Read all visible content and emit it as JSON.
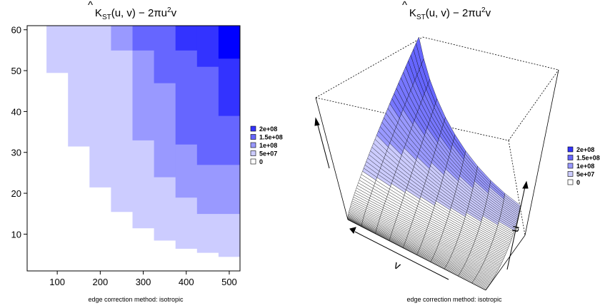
{
  "page": {
    "caption_left": "edge correction method: isotropic",
    "caption_right": "edge correction method: isotropic"
  },
  "chart_data": [
    {
      "type": "heatmap",
      "title": "K̂ST(u, v) − 2πu²v",
      "title_parts": {
        "hat": "^",
        "main": "K",
        "sub": "ST",
        "args": "(u, v) − 2πu",
        "sup": "2",
        "tail": "v"
      },
      "xlabel": "",
      "ylabel": "",
      "xlim": [
        30,
        525
      ],
      "ylim": [
        1,
        61
      ],
      "x_ticks": [
        100,
        200,
        300,
        400,
        500
      ],
      "y_ticks": [
        10,
        20,
        30,
        40,
        50,
        60
      ],
      "x_cells": [
        [
          75,
          125
        ],
        [
          125,
          175
        ],
        [
          175,
          225
        ],
        [
          225,
          275
        ],
        [
          275,
          325
        ],
        [
          325,
          375
        ],
        [
          375,
          425
        ],
        [
          425,
          475
        ],
        [
          475,
          525
        ]
      ],
      "columns": [
        {
          "x": [
            75,
            125
          ],
          "cells": [
            {
              "y": [
                49.5,
                61
              ],
              "level": 1
            }
          ]
        },
        {
          "x": [
            125,
            175
          ],
          "cells": [
            {
              "y": [
                31.5,
                61
              ],
              "level": 1
            }
          ]
        },
        {
          "x": [
            175,
            225
          ],
          "cells": [
            {
              "y": [
                21.5,
                61
              ],
              "level": 1
            }
          ]
        },
        {
          "x": [
            225,
            275
          ],
          "cells": [
            {
              "y": [
                15.5,
                55
              ],
              "level": 1
            },
            {
              "y": [
                55,
                61
              ],
              "level": 2
            }
          ]
        },
        {
          "x": [
            275,
            325
          ],
          "cells": [
            {
              "y": [
                11.5,
                33
              ],
              "level": 1
            },
            {
              "y": [
                33,
                55
              ],
              "level": 2
            },
            {
              "y": [
                55,
                61
              ],
              "level": 3
            }
          ]
        },
        {
          "x": [
            325,
            375
          ],
          "cells": [
            {
              "y": [
                8.5,
                24
              ],
              "level": 1
            },
            {
              "y": [
                24,
                47
              ],
              "level": 2
            },
            {
              "y": [
                47,
                61
              ],
              "level": 3
            }
          ]
        },
        {
          "x": [
            375,
            425
          ],
          "cells": [
            {
              "y": [
                6.5,
                19
              ],
              "level": 1
            },
            {
              "y": [
                19,
                32
              ],
              "level": 2
            },
            {
              "y": [
                32,
                55
              ],
              "level": 3
            },
            {
              "y": [
                55,
                61
              ],
              "level": 4
            }
          ]
        },
        {
          "x": [
            425,
            475
          ],
          "cells": [
            {
              "y": [
                5.5,
                15
              ],
              "level": 1
            },
            {
              "y": [
                15,
                27
              ],
              "level": 2
            },
            {
              "y": [
                27,
                51
              ],
              "level": 3
            },
            {
              "y": [
                51,
                61
              ],
              "level": 4
            }
          ]
        },
        {
          "x": [
            475,
            525
          ],
          "cells": [
            {
              "y": [
                4.5,
                15
              ],
              "level": 1
            },
            {
              "y": [
                15,
                27
              ],
              "level": 2
            },
            {
              "y": [
                27,
                39
              ],
              "level": 3
            },
            {
              "y": [
                39,
                53
              ],
              "level": 4
            },
            {
              "y": [
                53,
                61
              ],
              "level": 5
            }
          ]
        }
      ],
      "legend": {
        "placement": "right",
        "entries": [
          {
            "label": "2e+08",
            "color": "#3333ff"
          },
          {
            "label": "1.5e+08",
            "color": "#6666ff"
          },
          {
            "label": "1e+08",
            "color": "#9999ff"
          },
          {
            "label": "5e+07",
            "color": "#ccccff"
          },
          {
            "label": "0",
            "color": "#ffffff"
          }
        ]
      },
      "level_colors": [
        "#ffffff",
        "#ccccff",
        "#9999ff",
        "#6666ff",
        "#3333ff",
        "#0000ff"
      ]
    },
    {
      "type": "surface",
      "title": "K̂ST(u, v) − 2πu²v",
      "title_parts": {
        "hat": "^",
        "main": "K",
        "sub": "ST",
        "args": "(u, v) − 2πu",
        "sup": "2",
        "tail": "v"
      },
      "axis_labels": {
        "v": "v",
        "u": "u"
      },
      "surface_grid": {
        "u_steps": 60,
        "v_steps": 10
      },
      "legend": {
        "placement": "right",
        "entries": [
          {
            "label": "2e+08",
            "color": "#3333ff"
          },
          {
            "label": "1.5e+08",
            "color": "#6666ff"
          },
          {
            "label": "1e+08",
            "color": "#9999ff"
          },
          {
            "label": "5e+07",
            "color": "#ccccff"
          },
          {
            "label": "0",
            "color": "#ffffff"
          }
        ]
      }
    }
  ]
}
